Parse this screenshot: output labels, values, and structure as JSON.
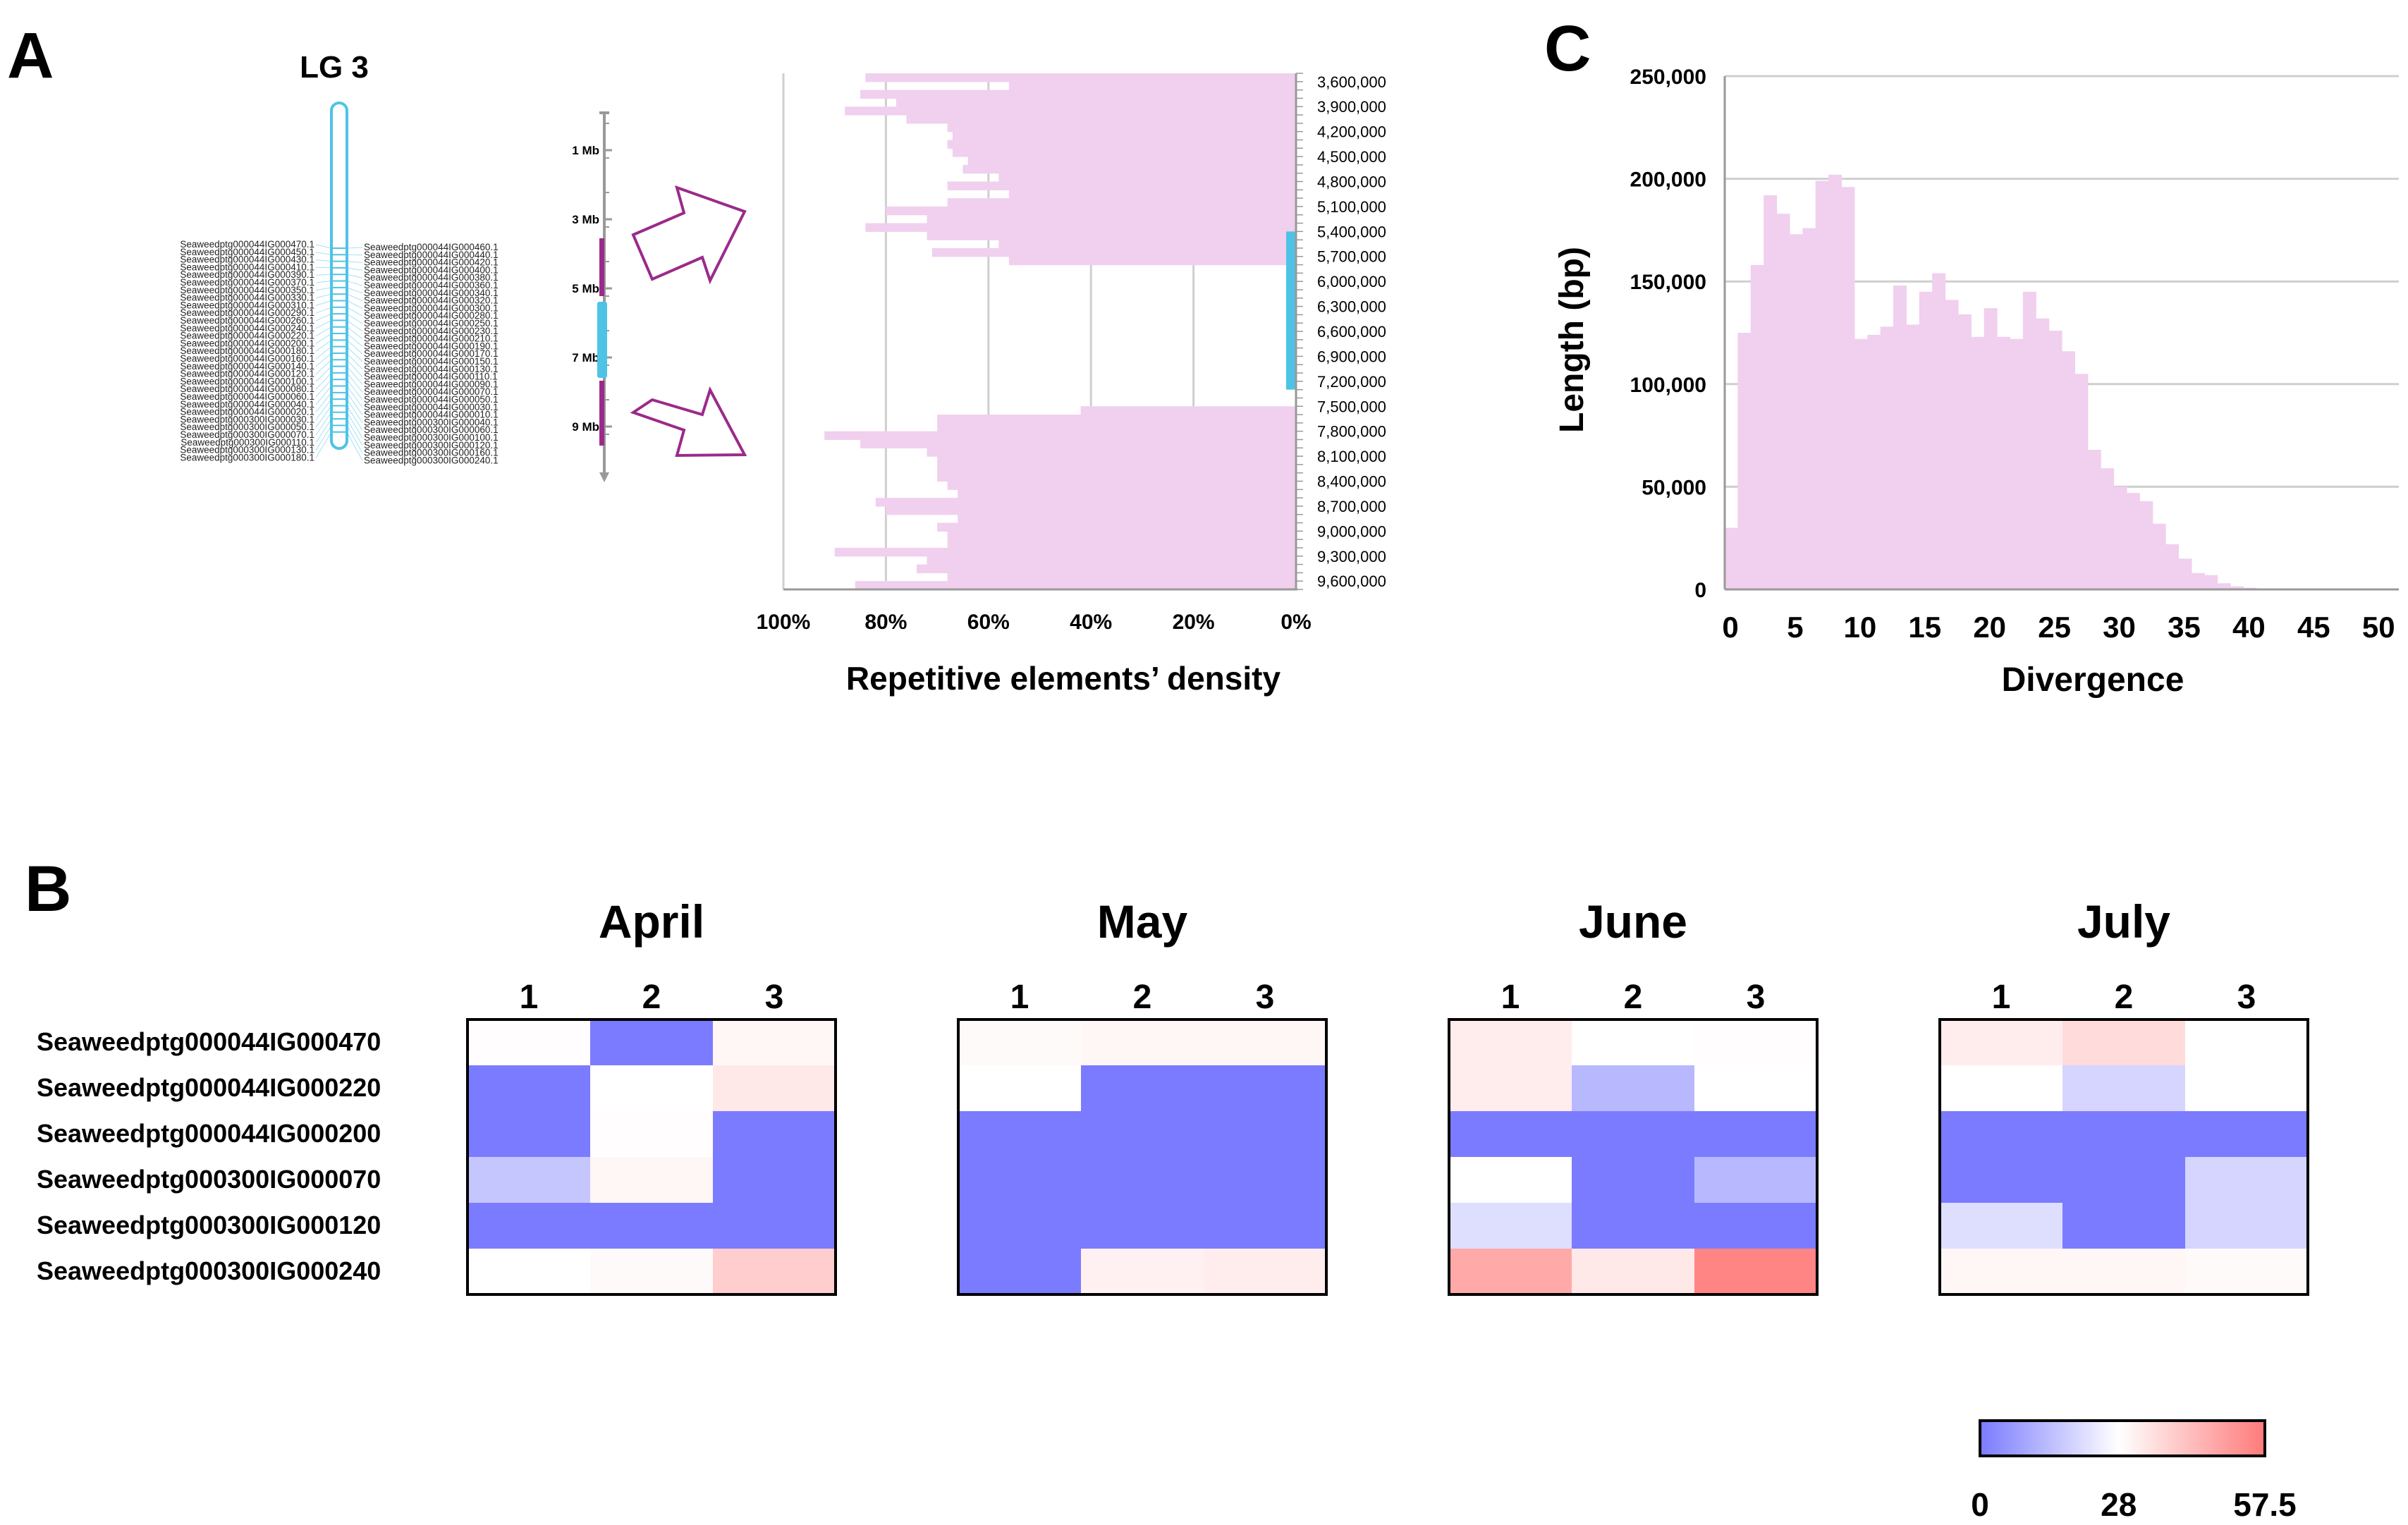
{
  "panel_labels": {
    "a": "A",
    "b": "B",
    "c": "C"
  },
  "colors": {
    "pink_bar": "#f0d0ee",
    "cyan": "#4ec3e6",
    "purple": "#9b2a8a",
    "grid": "#cfcfcf",
    "heat_low": "#7b7bff",
    "heat_mid": "#ffffff",
    "heat_high": "#ff7a7a"
  },
  "lg3": {
    "title": "LG 3",
    "left_genes": [
      "Seaweedptg000044IG000470.1",
      "Seaweedptg000044IG000450.1",
      "Seaweedptg000044IG000430.1",
      "Seaweedptg000044IG000410.1",
      "Seaweedptg000044IG000390.1",
      "Seaweedptg000044IG000370.1",
      "Seaweedptg000044IG000350.1",
      "Seaweedptg000044IG000330.1",
      "Seaweedptg000044IG000310.1",
      "Seaweedptg000044IG000290.1",
      "Seaweedptg000044IG000260.1",
      "Seaweedptg000044IG000240.1",
      "Seaweedptg000044IG000220.1",
      "Seaweedptg000044IG000200.1",
      "Seaweedptg000044IG000180.1",
      "Seaweedptg000044IG000160.1",
      "Seaweedptg000044IG000140.1",
      "Seaweedptg000044IG000120.1",
      "Seaweedptg000044IG000100.1",
      "Seaweedptg000044IG000080.1",
      "Seaweedptg000044IG000060.1",
      "Seaweedptg000044IG000040.1",
      "Seaweedptg000044IG000020.1",
      "Seaweedptg000300IG000030.1",
      "Seaweedptg000300IG000050.1",
      "Seaweedptg000300IG000070.1",
      "Seaweedptg000300IG000110.1",
      "Seaweedptg000300IG000130.1",
      "Seaweedptg000300IG000180.1"
    ],
    "right_genes": [
      "Seaweedptg000044IG000460.1",
      "Seaweedptg000044IG000440.1",
      "Seaweedptg000044IG000420.1",
      "Seaweedptg000044IG000400.1",
      "Seaweedptg000044IG000380.1",
      "Seaweedptg000044IG000360.1",
      "Seaweedptg000044IG000340.1",
      "Seaweedptg000044IG000320.1",
      "Seaweedptg000044IG000300.1",
      "Seaweedptg000044IG000280.1",
      "Seaweedptg000044IG000250.1",
      "Seaweedptg000044IG000230.1",
      "Seaweedptg000044IG000210.1",
      "Seaweedptg000044IG000190.1",
      "Seaweedptg000044IG000170.1",
      "Seaweedptg000044IG000150.1",
      "Seaweedptg000044IG000130.1",
      "Seaweedptg000044IG000110.1",
      "Seaweedptg000044IG000090.1",
      "Seaweedptg000044IG000070.1",
      "Seaweedptg000044IG000050.1",
      "Seaweedptg000044IG000030.1",
      "Seaweedptg000044IG000010.1",
      "Seaweedptg000300IG000040.1",
      "Seaweedptg000300IG000060.1",
      "Seaweedptg000300IG000100.1",
      "Seaweedptg000300IG000120.1",
      "Seaweedptg000300IG000160.1",
      "Seaweedptg000300IG000240.1"
    ]
  },
  "mb_scale": {
    "labels": [
      "1 Mb",
      "3 Mb",
      "5 Mb",
      "7 Mb",
      "9 Mb"
    ]
  },
  "chart_data": [
    {
      "type": "bar",
      "orientation": "horizontal",
      "xlabel": "Repetitive elements’ density",
      "x_tick_labels": [
        "100%",
        "80%",
        "60%",
        "40%",
        "20%",
        "0%"
      ],
      "xlim": [
        100,
        0
      ],
      "y_tick_labels": [
        "3,600,000",
        "3,900,000",
        "4,200,000",
        "4,500,000",
        "4,800,000",
        "5,100,000",
        "5,400,000",
        "5,700,000",
        "6,000,000",
        "6,300,000",
        "6,600,000",
        "6,900,000",
        "7,200,000",
        "7,500,000",
        "7,800,000",
        "8,100,000",
        "8,400,000",
        "8,700,000",
        "9,000,000",
        "9,300,000",
        "9,600,000"
      ],
      "ylim": [
        3500000,
        9700000
      ],
      "bin_size": 100000,
      "bin_start": [
        3500000,
        3600000,
        3700000,
        3800000,
        3900000,
        4000000,
        4100000,
        4200000,
        4300000,
        4400000,
        4500000,
        4600000,
        4700000,
        4800000,
        4900000,
        5000000,
        5100000,
        5200000,
        5300000,
        5400000,
        5500000,
        5600000,
        5700000,
        5800000,
        5900000,
        6000000,
        6100000,
        6200000,
        6300000,
        6400000,
        6500000,
        6600000,
        6700000,
        6800000,
        6900000,
        7000000,
        7100000,
        7200000,
        7300000,
        7400000,
        7500000,
        7600000,
        7700000,
        7800000,
        7900000,
        8000000,
        8100000,
        8200000,
        8300000,
        8400000,
        8500000,
        8600000,
        8700000,
        8800000,
        8900000,
        9000000,
        9100000,
        9200000,
        9300000,
        9400000,
        9500000,
        9600000
      ],
      "values": [
        84,
        56,
        85,
        78,
        88,
        76,
        68,
        67,
        68,
        67,
        64,
        65,
        58,
        68,
        56,
        68,
        80,
        72,
        84,
        72,
        58,
        71,
        56,
        0,
        0,
        0,
        0,
        0,
        0,
        0,
        0,
        0,
        0,
        0,
        0,
        0,
        0,
        0,
        0,
        0,
        42,
        70,
        70,
        92,
        85,
        72,
        70,
        70,
        70,
        68,
        66,
        82,
        80,
        66,
        70,
        68,
        68,
        90,
        72,
        74,
        68,
        86,
        70,
        72
      ],
      "highlight_range": [
        5400000,
        7300000
      ]
    },
    {
      "type": "bar",
      "xlabel": "Divergence",
      "ylabel": "Length (bp)",
      "x_tick_labels": [
        "0",
        "5",
        "10",
        "15",
        "20",
        "25",
        "30",
        "35",
        "40",
        "45",
        "50"
      ],
      "xlim": [
        0,
        52
      ],
      "y_tick_labels": [
        "0",
        "50,000",
        "100,000",
        "150,000",
        "200,000",
        "250,000"
      ],
      "ylim": [
        0,
        250000
      ],
      "x": [
        0,
        1,
        2,
        3,
        4,
        5,
        6,
        7,
        8,
        9,
        10,
        11,
        12,
        13,
        14,
        15,
        16,
        17,
        18,
        19,
        20,
        21,
        22,
        23,
        24,
        25,
        26,
        27,
        28,
        29,
        30,
        31,
        32,
        33,
        34,
        35,
        36,
        37,
        38,
        39,
        40,
        41,
        42
      ],
      "values": [
        30000,
        125000,
        158000,
        192000,
        183000,
        173000,
        176000,
        199000,
        202000,
        196000,
        122000,
        124000,
        128000,
        148000,
        129000,
        145000,
        154000,
        141000,
        134000,
        123000,
        137000,
        123000,
        122000,
        145000,
        132000,
        126000,
        116000,
        105000,
        68000,
        59000,
        50000,
        47000,
        43000,
        32000,
        22000,
        15000,
        8000,
        7000,
        3000,
        1500,
        800,
        400,
        200
      ]
    },
    {
      "type": "heatmap",
      "color_scale": {
        "min": 0,
        "mid": 28,
        "max": 57.5,
        "tick_labels": [
          "0",
          "28",
          "57.5"
        ]
      },
      "rows": [
        "Seaweedptg000044IG000470",
        "Seaweedptg000044IG000220",
        "Seaweedptg000044IG000200",
        "Seaweedptg000300IG000070",
        "Seaweedptg000300IG000120",
        "Seaweedptg000300IG000240"
      ],
      "columns": [
        "1",
        "2",
        "3"
      ],
      "panels": [
        {
          "title": "April",
          "values": [
            [
              28.5,
              0,
              30
            ],
            [
              0,
              28,
              33
            ],
            [
              0,
              28.5,
              0
            ],
            [
              16,
              30,
              0
            ],
            [
              0,
              0,
              0
            ],
            [
              28,
              29,
              39
            ]
          ]
        },
        {
          "title": "May",
          "values": [
            [
              29,
              30,
              30
            ],
            [
              28,
              0,
              0
            ],
            [
              0,
              0,
              0
            ],
            [
              0,
              0,
              0
            ],
            [
              0,
              0,
              0
            ],
            [
              0,
              31,
              32
            ]
          ]
        },
        {
          "title": "June",
          "values": [
            [
              32,
              28,
              28.5
            ],
            [
              32,
              13,
              28
            ],
            [
              0,
              0,
              0
            ],
            [
              28,
              0,
              13
            ],
            [
              21,
              0,
              0
            ],
            [
              47,
              33,
              55
            ]
          ]
        },
        {
          "title": "July",
          "values": [
            [
              32,
              36,
              28
            ],
            [
              28,
              19,
              28
            ],
            [
              0,
              0,
              0
            ],
            [
              0,
              0,
              19
            ],
            [
              21,
              0,
              19
            ],
            [
              30,
              30,
              29
            ]
          ]
        }
      ]
    }
  ]
}
